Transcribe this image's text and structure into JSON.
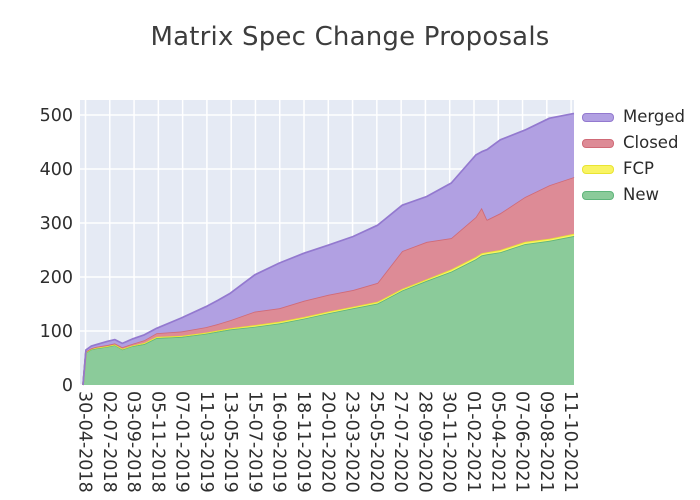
{
  "title": "Matrix Spec Change Proposals",
  "legend": {
    "position": "right",
    "entries": [
      {
        "label": "Merged",
        "series": "Merged"
      },
      {
        "label": "Closed",
        "series": "Closed"
      },
      {
        "label": "FCP",
        "series": "FCP"
      },
      {
        "label": "New",
        "series": "New"
      }
    ]
  },
  "chart_data": {
    "type": "area",
    "stacked": true,
    "title": "Matrix Spec Change Proposals",
    "xlabel": "",
    "ylabel": "",
    "ylim": [
      0,
      500
    ],
    "yticks": [
      0,
      100,
      200,
      300,
      400,
      500
    ],
    "x_tick_labels": [
      "30-04-2018",
      "02-07-2018",
      "03-09-2018",
      "05-11-2018",
      "07-01-2019",
      "11-03-2019",
      "13-05-2019",
      "15-07-2019",
      "16-09-2019",
      "18-11-2019",
      "20-01-2020",
      "23-03-2020",
      "25-05-2020",
      "27-07-2020",
      "28-09-2020",
      "30-11-2020",
      "01-02-2021",
      "05-04-2021",
      "07-06-2021",
      "09-08-2021",
      "11-10-2021"
    ],
    "grid": true,
    "legend_position": "right",
    "plot_bg": "#e5eaf4",
    "grid_color": "#ffffff",
    "tick_color": "#2e2e2e",
    "title_color": "#3d3d3d",
    "stack_order_bottom_to_top": [
      "New",
      "FCP",
      "Closed",
      "Merged"
    ],
    "series_styles": {
      "New": {
        "fill": "#8bcb9a",
        "line": "#5fb57b"
      },
      "FCP": {
        "fill": "#f9f463",
        "line": "#e9e432"
      },
      "Closed": {
        "fill": "#dd8b96",
        "line": "#d06a77"
      },
      "Merged": {
        "fill": "#b1a0e2",
        "line": "#9379cf"
      }
    },
    "samples": [
      {
        "t": 0.0,
        "date": "30-04-2018",
        "New": 0,
        "FCP": 0,
        "Closed": 0,
        "Merged": 0
      },
      {
        "t": 0.006,
        "date": "07-05-2018",
        "New": 60,
        "FCP": 1,
        "Closed": 1,
        "Merged": 3
      },
      {
        "t": 0.017,
        "date": "21-05-2018",
        "New": 66,
        "FCP": 1,
        "Closed": 1,
        "Merged": 4
      },
      {
        "t": 0.028,
        "date": "04-06-2018",
        "New": 68,
        "FCP": 1,
        "Closed": 2,
        "Merged": 4
      },
      {
        "t": 0.05,
        "date": "02-07-2018",
        "New": 71,
        "FCP": 1,
        "Closed": 2,
        "Merged": 7
      },
      {
        "t": 0.065,
        "date": "21-07-2018",
        "New": 74,
        "FCP": 1,
        "Closed": 2,
        "Merged": 7
      },
      {
        "t": 0.08,
        "date": "10-08-2018",
        "New": 66,
        "FCP": 1,
        "Closed": 3,
        "Merged": 7
      },
      {
        "t": 0.1,
        "date": "03-09-2018",
        "New": 72,
        "FCP": 1,
        "Closed": 3,
        "Merged": 9
      },
      {
        "t": 0.125,
        "date": "04-10-2018",
        "New": 76,
        "FCP": 2,
        "Closed": 5,
        "Merged": 10
      },
      {
        "t": 0.15,
        "date": "05-11-2018",
        "New": 87,
        "FCP": 2,
        "Closed": 7,
        "Merged": 9
      },
      {
        "t": 0.2,
        "date": "07-01-2019",
        "New": 89,
        "FCP": 2,
        "Closed": 8,
        "Merged": 25
      },
      {
        "t": 0.25,
        "date": "11-03-2019",
        "New": 95,
        "FCP": 2,
        "Closed": 10,
        "Merged": 38
      },
      {
        "t": 0.275,
        "date": "11-04-2019",
        "New": 99,
        "FCP": 2,
        "Closed": 12,
        "Merged": 44
      },
      {
        "t": 0.3,
        "date": "13-05-2019",
        "New": 103,
        "FCP": 2,
        "Closed": 15,
        "Merged": 50
      },
      {
        "t": 0.35,
        "date": "15-07-2019",
        "New": 108,
        "FCP": 3,
        "Closed": 25,
        "Merged": 68
      },
      {
        "t": 0.4,
        "date": "16-09-2019",
        "New": 114,
        "FCP": 3,
        "Closed": 25,
        "Merged": 84
      },
      {
        "t": 0.45,
        "date": "18-11-2019",
        "New": 123,
        "FCP": 3,
        "Closed": 30,
        "Merged": 88
      },
      {
        "t": 0.5,
        "date": "20-01-2020",
        "New": 133,
        "FCP": 3,
        "Closed": 31,
        "Merged": 92
      },
      {
        "t": 0.55,
        "date": "23-03-2020",
        "New": 142,
        "FCP": 3,
        "Closed": 31,
        "Merged": 99
      },
      {
        "t": 0.6,
        "date": "25-05-2020",
        "New": 151,
        "FCP": 3,
        "Closed": 35,
        "Merged": 107
      },
      {
        "t": 0.65,
        "date": "27-07-2020",
        "New": 175,
        "FCP": 3,
        "Closed": 70,
        "Merged": 85
      },
      {
        "t": 0.7,
        "date": "28-09-2020",
        "New": 193,
        "FCP": 3,
        "Closed": 69,
        "Merged": 84
      },
      {
        "t": 0.75,
        "date": "30-11-2020",
        "New": 210,
        "FCP": 4,
        "Closed": 58,
        "Merged": 102
      },
      {
        "t": 0.8,
        "date": "01-02-2021",
        "New": 233,
        "FCP": 4,
        "Closed": 74,
        "Merged": 115
      },
      {
        "t": 0.812,
        "date": "15-02-2021",
        "New": 240,
        "FCP": 4,
        "Closed": 84,
        "Merged": 104
      },
      {
        "t": 0.823,
        "date": "01-03-2021",
        "New": 242,
        "FCP": 4,
        "Closed": 60,
        "Merged": 130
      },
      {
        "t": 0.85,
        "date": "05-04-2021",
        "New": 246,
        "FCP": 4,
        "Closed": 68,
        "Merged": 136
      },
      {
        "t": 0.9,
        "date": "07-06-2021",
        "New": 261,
        "FCP": 4,
        "Closed": 83,
        "Merged": 124
      },
      {
        "t": 0.95,
        "date": "09-08-2021",
        "New": 267,
        "FCP": 4,
        "Closed": 99,
        "Merged": 124
      },
      {
        "t": 1.0,
        "date": "11-10-2021",
        "New": 276,
        "FCP": 4,
        "Closed": 105,
        "Merged": 118
      }
    ]
  }
}
